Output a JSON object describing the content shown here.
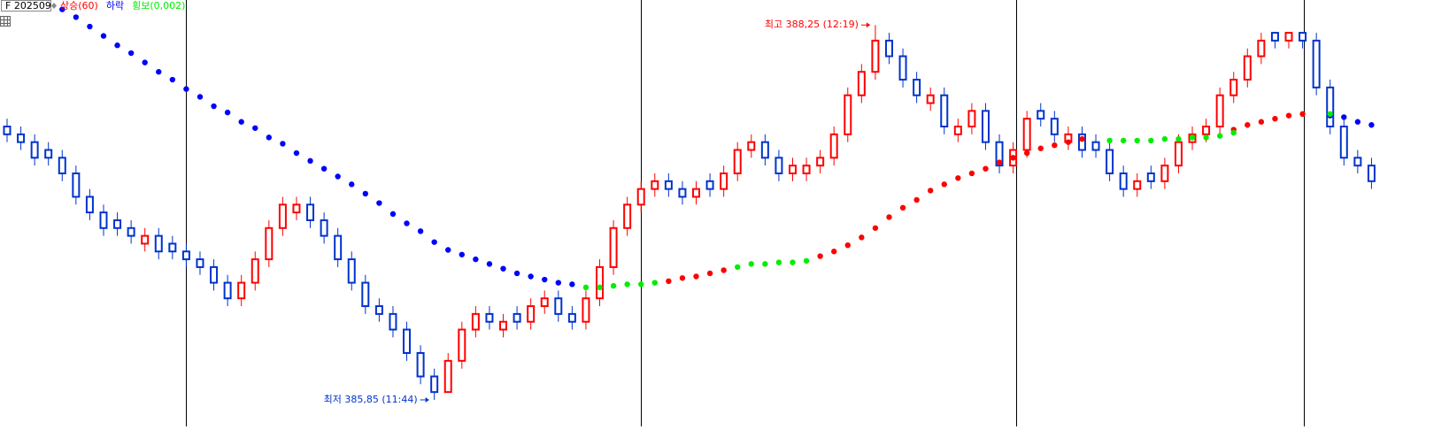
{
  "chart_data": {
    "type": "candlestick",
    "title": "F 202509",
    "ylim": [
      385.68,
      388.41
    ],
    "up_color": "#ff0000",
    "down_color": "#0033cc",
    "open": [
      387.6,
      387.55,
      387.5,
      387.45,
      387.4,
      387.3,
      387.15,
      387.05,
      387.0,
      386.95,
      386.85,
      386.9,
      386.85,
      386.8,
      386.75,
      386.7,
      386.6,
      386.5,
      386.6,
      386.75,
      386.95,
      387.05,
      387.1,
      387.0,
      386.9,
      386.75,
      386.6,
      386.45,
      386.4,
      386.3,
      386.15,
      386.0,
      385.9,
      386.1,
      386.3,
      386.4,
      386.3,
      386.4,
      386.35,
      386.45,
      386.5,
      386.4,
      386.35,
      386.5,
      386.7,
      386.95,
      387.1,
      387.2,
      387.25,
      387.2,
      387.15,
      387.25,
      387.2,
      387.3,
      387.45,
      387.5,
      387.4,
      387.3,
      387.3,
      387.35,
      387.4,
      387.55,
      387.8,
      387.95,
      388.15,
      388.05,
      387.9,
      387.75,
      387.8,
      387.55,
      387.6,
      387.7,
      387.5,
      387.35,
      387.45,
      387.7,
      387.65,
      387.5,
      387.55,
      387.5,
      387.45,
      387.3,
      387.2,
      387.3,
      387.25,
      387.35,
      387.5,
      387.55,
      387.6,
      387.8,
      387.9,
      388.05,
      388.2,
      388.15,
      388.2,
      388.15,
      387.85,
      387.6,
      387.4,
      387.35
    ],
    "high": [
      387.65,
      387.6,
      387.55,
      387.5,
      387.45,
      387.35,
      387.2,
      387.1,
      387.05,
      387.0,
      386.95,
      386.95,
      386.9,
      386.85,
      386.8,
      386.75,
      386.65,
      386.65,
      386.8,
      387.0,
      387.15,
      387.15,
      387.15,
      387.05,
      386.95,
      386.8,
      386.65,
      386.5,
      386.45,
      386.35,
      386.2,
      386.05,
      386.15,
      386.35,
      386.45,
      386.45,
      386.4,
      386.45,
      386.5,
      386.55,
      386.55,
      386.45,
      386.55,
      386.75,
      387.0,
      387.15,
      387.25,
      387.3,
      387.3,
      387.25,
      387.25,
      387.3,
      387.35,
      387.5,
      387.55,
      387.55,
      387.45,
      387.4,
      387.4,
      387.45,
      387.6,
      387.85,
      388.0,
      388.25,
      388.2,
      388.1,
      387.95,
      387.85,
      387.85,
      387.65,
      387.75,
      387.75,
      387.55,
      387.5,
      387.7,
      387.75,
      387.7,
      387.6,
      387.6,
      387.55,
      387.5,
      387.35,
      387.3,
      387.35,
      387.4,
      387.55,
      387.6,
      387.65,
      387.85,
      387.95,
      388.1,
      388.2,
      388.2,
      388.2,
      388.2,
      388.2,
      387.9,
      387.65,
      387.45,
      387.4
    ],
    "low": [
      387.5,
      387.45,
      387.35,
      387.35,
      387.25,
      387.1,
      387.0,
      386.9,
      386.9,
      386.85,
      386.8,
      386.75,
      386.75,
      386.7,
      386.65,
      386.55,
      386.45,
      386.45,
      386.55,
      386.7,
      386.9,
      387.0,
      386.95,
      386.85,
      386.7,
      386.55,
      386.4,
      386.35,
      386.25,
      386.1,
      385.95,
      385.85,
      385.9,
      386.05,
      386.25,
      386.3,
      386.25,
      386.3,
      386.3,
      386.4,
      386.35,
      386.3,
      386.3,
      386.45,
      386.65,
      386.9,
      387.05,
      387.15,
      387.15,
      387.1,
      387.1,
      387.15,
      387.15,
      387.25,
      387.4,
      387.35,
      387.25,
      387.25,
      387.25,
      387.3,
      387.35,
      387.5,
      387.75,
      387.9,
      388.0,
      387.85,
      387.75,
      387.7,
      387.55,
      387.5,
      387.55,
      387.45,
      387.3,
      387.3,
      387.4,
      387.6,
      387.5,
      387.45,
      387.4,
      387.4,
      387.25,
      387.15,
      387.15,
      387.2,
      387.2,
      387.3,
      387.45,
      387.5,
      387.55,
      387.75,
      387.85,
      388.0,
      388.1,
      388.1,
      388.1,
      387.8,
      387.55,
      387.35,
      387.3,
      387.2
    ],
    "close": [
      387.55,
      387.5,
      387.4,
      387.4,
      387.3,
      387.15,
      387.05,
      386.95,
      386.95,
      386.9,
      386.9,
      386.8,
      386.8,
      386.75,
      386.7,
      386.6,
      386.5,
      386.6,
      386.75,
      386.95,
      387.1,
      387.1,
      387.0,
      386.9,
      386.75,
      386.6,
      386.45,
      386.4,
      386.3,
      386.15,
      386.0,
      385.9,
      386.1,
      386.3,
      386.4,
      386.35,
      386.35,
      386.35,
      386.45,
      386.5,
      386.4,
      386.35,
      386.5,
      386.7,
      386.95,
      387.1,
      387.2,
      387.25,
      387.2,
      387.15,
      387.2,
      387.2,
      387.3,
      387.45,
      387.5,
      387.4,
      387.3,
      387.35,
      387.35,
      387.4,
      387.55,
      387.8,
      387.95,
      388.15,
      388.05,
      387.9,
      387.8,
      387.8,
      387.6,
      387.6,
      387.7,
      387.5,
      387.35,
      387.45,
      387.65,
      387.65,
      387.55,
      387.55,
      387.45,
      387.45,
      387.3,
      387.2,
      387.25,
      387.25,
      387.35,
      387.5,
      387.55,
      387.6,
      387.8,
      387.9,
      388.05,
      388.15,
      388.15,
      388.2,
      388.15,
      387.85,
      387.6,
      387.4,
      387.35,
      387.25
    ],
    "series": [
      {
        "name": "상승(60)",
        "color": "#ff0000",
        "values": [
          null,
          null,
          null,
          null,
          null,
          null,
          null,
          null,
          null,
          null,
          null,
          null,
          null,
          null,
          null,
          null,
          null,
          null,
          null,
          null,
          null,
          null,
          null,
          null,
          null,
          null,
          null,
          null,
          null,
          null,
          null,
          null,
          null,
          null,
          null,
          null,
          null,
          null,
          null,
          null,
          null,
          null,
          null,
          null,
          null,
          null,
          null,
          null,
          386.61,
          386.63,
          386.64,
          386.66,
          386.68,
          null,
          null,
          null,
          null,
          null,
          null,
          386.77,
          386.8,
          386.84,
          386.89,
          386.95,
          387.02,
          387.08,
          387.13,
          387.19,
          387.23,
          387.27,
          387.3,
          387.33,
          387.37,
          387.4,
          387.43,
          387.46,
          387.48,
          387.5,
          387.52,
          null,
          null,
          null,
          null,
          null,
          null,
          null,
          null,
          null,
          null,
          387.58,
          387.61,
          387.63,
          387.65,
          387.67,
          387.68,
          null,
          null,
          null,
          null,
          null
        ]
      },
      {
        "name": "하락",
        "color": "#0000ff",
        "values": [
          null,
          null,
          null,
          null,
          388.35,
          388.3,
          388.24,
          388.18,
          388.12,
          388.07,
          388.01,
          387.95,
          387.9,
          387.84,
          387.79,
          387.73,
          387.69,
          387.63,
          387.59,
          387.53,
          387.49,
          387.43,
          387.38,
          387.33,
          387.28,
          387.23,
          387.17,
          387.11,
          387.04,
          386.98,
          386.93,
          386.86,
          386.81,
          386.78,
          386.75,
          386.72,
          386.69,
          386.66,
          386.64,
          386.62,
          386.6,
          386.59,
          null,
          null,
          null,
          null,
          null,
          null,
          null,
          null,
          null,
          null,
          null,
          null,
          null,
          null,
          null,
          null,
          null,
          null,
          null,
          null,
          null,
          null,
          null,
          null,
          null,
          null,
          null,
          null,
          null,
          null,
          null,
          null,
          null,
          null,
          null,
          null,
          null,
          null,
          null,
          null,
          null,
          null,
          null,
          null,
          null,
          null,
          null,
          null,
          null,
          null,
          null,
          null,
          null,
          null,
          387.67,
          387.66,
          387.63,
          387.61
        ]
      },
      {
        "name": "횡보(0,002)",
        "color": "#00ee00",
        "values": [
          null,
          null,
          null,
          null,
          null,
          null,
          null,
          null,
          null,
          null,
          null,
          null,
          null,
          null,
          null,
          null,
          null,
          null,
          null,
          null,
          null,
          null,
          null,
          null,
          null,
          null,
          null,
          null,
          null,
          null,
          null,
          null,
          null,
          null,
          null,
          null,
          null,
          null,
          null,
          null,
          null,
          null,
          386.57,
          386.57,
          386.58,
          386.59,
          386.59,
          386.6,
          null,
          null,
          null,
          null,
          null,
          386.7,
          386.72,
          386.72,
          386.73,
          386.73,
          386.74,
          null,
          null,
          null,
          null,
          null,
          null,
          null,
          null,
          null,
          null,
          null,
          null,
          null,
          null,
          null,
          null,
          null,
          null,
          null,
          null,
          null,
          387.51,
          387.51,
          387.51,
          387.51,
          387.52,
          387.52,
          387.53,
          387.53,
          387.54,
          387.56,
          null,
          null,
          null,
          null,
          null,
          null,
          387.68,
          null,
          null,
          null,
          null
        ]
      }
    ],
    "annotations": [
      {
        "text": "최고 388,25 (12:19)",
        "index": 63,
        "value": 388.25,
        "color": "#ff0000"
      },
      {
        "text": "최저 385,85 (11:44)",
        "index": 31,
        "value": 385.85,
        "color": "#0033cc"
      }
    ]
  }
}
